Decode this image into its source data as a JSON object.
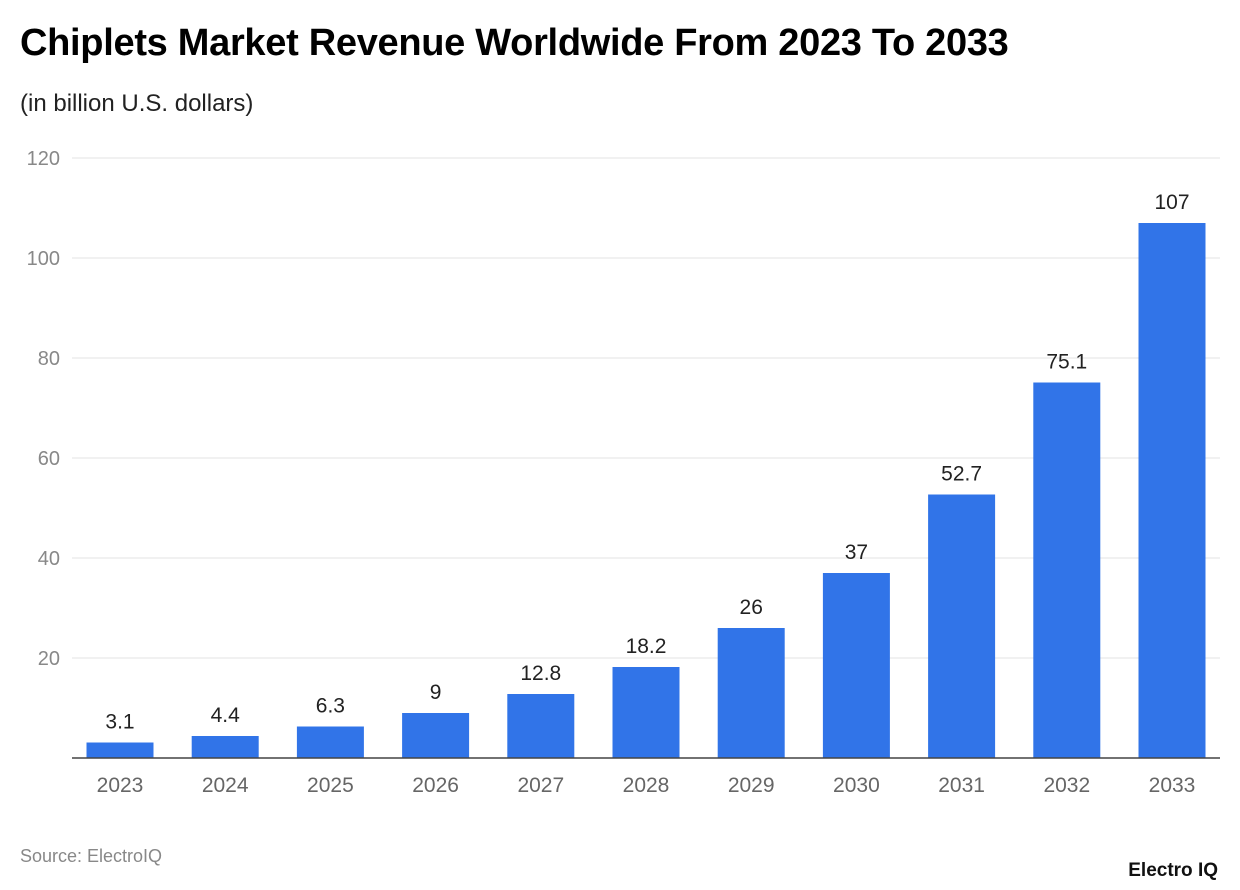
{
  "chart_data": {
    "type": "bar",
    "title": "Chiplets Market Revenue Worldwide From 2023 To 2033",
    "subtitle": "(in billion U.S. dollars)",
    "categories": [
      "2023",
      "2024",
      "2025",
      "2026",
      "2027",
      "2028",
      "2029",
      "2030",
      "2031",
      "2032",
      "2033"
    ],
    "values": [
      3.1,
      4.4,
      6.3,
      9,
      12.8,
      18.2,
      26,
      37,
      52.7,
      75.1,
      107
    ],
    "ylim": [
      0,
      120
    ],
    "yticks": [
      20,
      40,
      60,
      80,
      100,
      120
    ],
    "grid": true,
    "bar_color": "#3174e8",
    "xlabel": "",
    "ylabel": ""
  },
  "source": "Source: ElectroIQ",
  "logo": "Electro IQ"
}
